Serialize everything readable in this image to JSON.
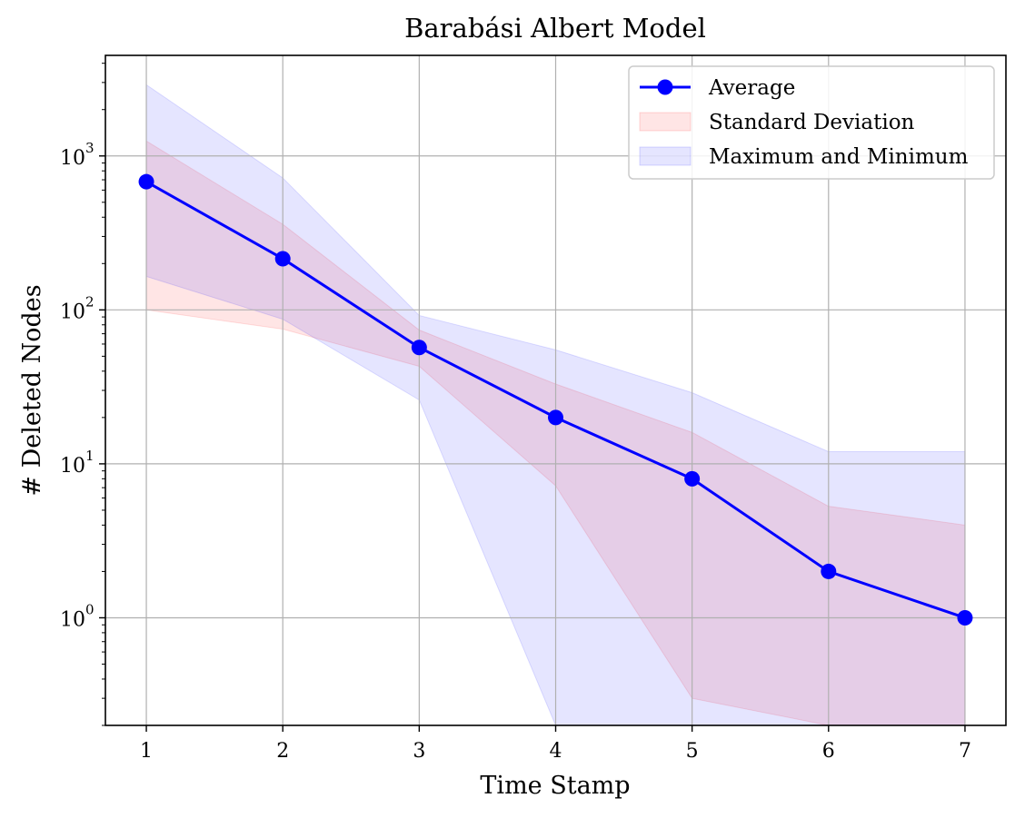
{
  "chart_data": {
    "type": "line",
    "title": "Barabási Albert Model",
    "xlabel": "Time Stamp",
    "ylabel": "# Deleted Nodes",
    "yscale": "log",
    "xlim": [
      0.7,
      7.3
    ],
    "ylim": [
      0.2,
      4500
    ],
    "grid": true,
    "legend_position": "top-right",
    "x": [
      1,
      2,
      3,
      4,
      5,
      6,
      7
    ],
    "x_ticks": [
      "1",
      "2",
      "3",
      "4",
      "5",
      "6",
      "7"
    ],
    "y_ticks": [
      {
        "value": 1,
        "base": "10",
        "exp": "0"
      },
      {
        "value": 10,
        "base": "10",
        "exp": "1"
      },
      {
        "value": 100,
        "base": "10",
        "exp": "2"
      },
      {
        "value": 1000,
        "base": "10",
        "exp": "3"
      }
    ],
    "series": [
      {
        "name": "Average",
        "kind": "line",
        "color": "#0000ff",
        "values": [
          680,
          215,
          57,
          20,
          8,
          2,
          1
        ]
      },
      {
        "name": "Standard Deviation",
        "kind": "band",
        "color": "#ff0000",
        "opacity": 0.1,
        "upper": [
          1250,
          360,
          74,
          33,
          16,
          5.3,
          4
        ],
        "lower": [
          100,
          75,
          43,
          7.2,
          0.3,
          0.2,
          0.2
        ]
      },
      {
        "name": "Maximum and Minimum",
        "kind": "band",
        "color": "#0000ff",
        "opacity": 0.1,
        "upper": [
          2900,
          720,
          92,
          55,
          29,
          12,
          12
        ],
        "lower": [
          165,
          87,
          26,
          0.2,
          0.2,
          0.2,
          0.2
        ]
      }
    ],
    "legend": [
      "Average",
      "Standard Deviation",
      "Maximum and Minimum"
    ]
  }
}
